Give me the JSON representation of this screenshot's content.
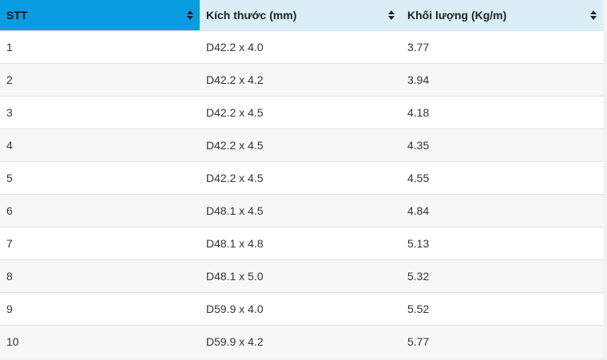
{
  "table": {
    "headers": [
      "STT",
      "Kích thước (mm)",
      "Khối lượng (Kg/m)"
    ],
    "rows": [
      [
        "1",
        "D42.2 x 4.0",
        "3.77"
      ],
      [
        "2",
        "D42.2 x 4.2",
        "3.94"
      ],
      [
        "3",
        "D42.2 x 4.5",
        "4.18"
      ],
      [
        "4",
        "D42.2 x 4.5",
        "4.35"
      ],
      [
        "5",
        "D42.2 x 4.5",
        "4.55"
      ],
      [
        "6",
        "D48.1 x 4.5",
        "4.84"
      ],
      [
        "7",
        "D48.1 x 4.8",
        "5.13"
      ],
      [
        "8",
        "D48.1 x 5.0",
        "5.32"
      ],
      [
        "9",
        "D59.9 x 4.0",
        "5.52"
      ],
      [
        "10",
        "D59.9 x 4.2",
        "5.77"
      ]
    ]
  },
  "colors": {
    "active_header": "#0a9ce0",
    "header": "#daeef8",
    "row_alt": "#f7f7f7"
  },
  "icons": {
    "sort": "sort-icon"
  }
}
